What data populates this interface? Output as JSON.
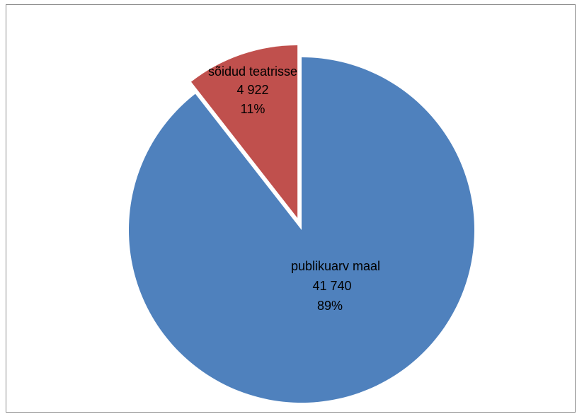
{
  "chart_data": {
    "type": "pie",
    "title": "",
    "slices": [
      {
        "name": "publikuarv maal",
        "value": 41740,
        "value_label": "41 740",
        "percent_label": "89%",
        "color": "#4f81bd"
      },
      {
        "name": "sõidud teatrisse",
        "value": 4922,
        "value_label": "4 922",
        "percent_label": "11%",
        "color": "#c0504d",
        "exploded": true
      }
    ],
    "legend": "none",
    "start_angle": "12 o'clock, clockwise"
  }
}
